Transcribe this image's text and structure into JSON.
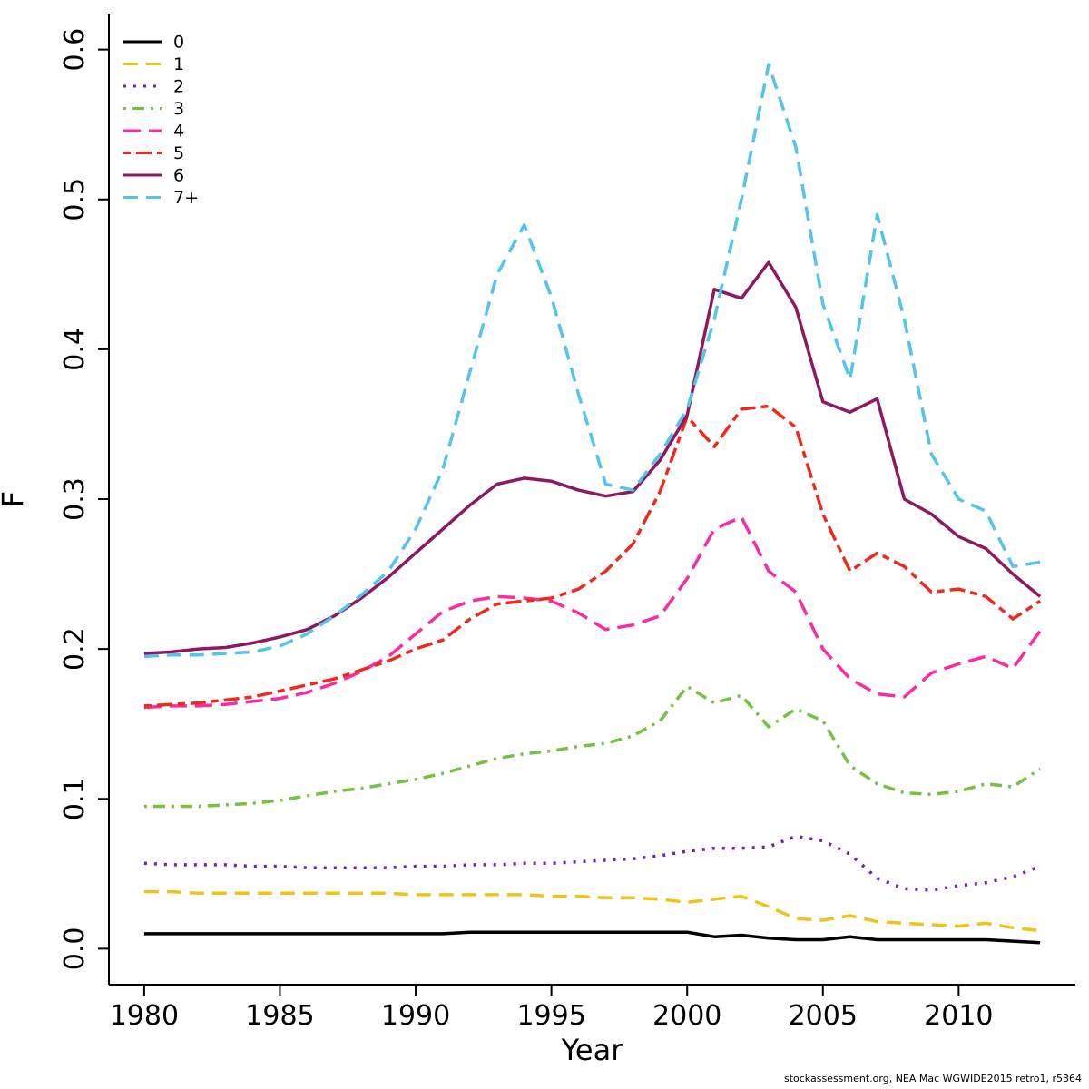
{
  "figure": {
    "footer": "stockassessment.org, NEA Mac WGWIDE2015 retro1, r5364"
  },
  "chart_data": {
    "type": "line",
    "title": "",
    "xlabel": "Year",
    "ylabel": "F",
    "grid": false,
    "legend_position": "top-left",
    "xlim": [
      1978.7,
      2014.3
    ],
    "ylim": [
      0.0,
      0.6
    ],
    "xticks": [
      1980,
      1985,
      1990,
      1995,
      2000,
      2005,
      2010
    ],
    "yticks": [
      0.0,
      0.1,
      0.2,
      0.3,
      0.4,
      0.5,
      0.6
    ],
    "x": [
      1980,
      1981,
      1982,
      1983,
      1984,
      1985,
      1986,
      1987,
      1988,
      1989,
      1990,
      1991,
      1992,
      1993,
      1994,
      1995,
      1996,
      1997,
      1998,
      1999,
      2000,
      2001,
      2002,
      2003,
      2004,
      2005,
      2006,
      2007,
      2008,
      2009,
      2010,
      2011,
      2012,
      2013
    ],
    "series": [
      {
        "name": "0",
        "color": "#000000",
        "linestyle": "solid",
        "values": [
          0.01,
          0.01,
          0.01,
          0.01,
          0.01,
          0.01,
          0.01,
          0.01,
          0.01,
          0.01,
          0.01,
          0.01,
          0.011,
          0.011,
          0.011,
          0.011,
          0.011,
          0.011,
          0.011,
          0.011,
          0.011,
          0.008,
          0.009,
          0.007,
          0.006,
          0.006,
          0.008,
          0.006,
          0.006,
          0.006,
          0.006,
          0.006,
          0.005,
          0.004
        ]
      },
      {
        "name": "1",
        "color": "#EEC31E",
        "linestyle": "dashed",
        "values": [
          0.038,
          0.038,
          0.037,
          0.037,
          0.037,
          0.037,
          0.037,
          0.037,
          0.037,
          0.037,
          0.036,
          0.036,
          0.036,
          0.036,
          0.036,
          0.035,
          0.035,
          0.034,
          0.034,
          0.033,
          0.031,
          0.033,
          0.035,
          0.028,
          0.02,
          0.019,
          0.022,
          0.018,
          0.017,
          0.016,
          0.015,
          0.017,
          0.014,
          0.012
        ]
      },
      {
        "name": "2",
        "color": "#6B24B2",
        "linestyle": "dotted",
        "values": [
          0.057,
          0.056,
          0.056,
          0.056,
          0.055,
          0.055,
          0.054,
          0.054,
          0.054,
          0.054,
          0.055,
          0.055,
          0.056,
          0.056,
          0.057,
          0.057,
          0.058,
          0.059,
          0.06,
          0.062,
          0.065,
          0.067,
          0.067,
          0.068,
          0.075,
          0.072,
          0.063,
          0.047,
          0.04,
          0.039,
          0.042,
          0.044,
          0.048,
          0.055
        ]
      },
      {
        "name": "3",
        "color": "#76C043",
        "linestyle": "dotdash",
        "values": [
          0.095,
          0.095,
          0.095,
          0.096,
          0.097,
          0.099,
          0.102,
          0.105,
          0.107,
          0.11,
          0.113,
          0.117,
          0.122,
          0.127,
          0.13,
          0.132,
          0.135,
          0.137,
          0.142,
          0.152,
          0.175,
          0.164,
          0.169,
          0.148,
          0.16,
          0.152,
          0.122,
          0.11,
          0.104,
          0.103,
          0.105,
          0.11,
          0.108,
          0.12
        ]
      },
      {
        "name": "4",
        "color": "#FB2BA0",
        "linestyle": "longdash",
        "values": [
          0.161,
          0.162,
          0.162,
          0.163,
          0.165,
          0.167,
          0.171,
          0.177,
          0.185,
          0.195,
          0.21,
          0.225,
          0.232,
          0.235,
          0.234,
          0.232,
          0.224,
          0.213,
          0.216,
          0.222,
          0.247,
          0.28,
          0.288,
          0.252,
          0.238,
          0.2,
          0.18,
          0.17,
          0.168,
          0.184,
          0.19,
          0.195,
          0.187,
          0.212
        ]
      },
      {
        "name": "5",
        "color": "#EE2A1F",
        "linestyle": "twodash",
        "values": [
          0.162,
          0.163,
          0.164,
          0.166,
          0.168,
          0.172,
          0.176,
          0.18,
          0.186,
          0.192,
          0.2,
          0.206,
          0.22,
          0.23,
          0.232,
          0.234,
          0.24,
          0.252,
          0.27,
          0.305,
          0.355,
          0.335,
          0.36,
          0.362,
          0.348,
          0.29,
          0.252,
          0.264,
          0.255,
          0.238,
          0.24,
          0.235,
          0.22,
          0.232
        ]
      },
      {
        "name": "6",
        "color": "#8B1A5E",
        "linestyle": "solid",
        "values": [
          0.197,
          0.198,
          0.2,
          0.201,
          0.204,
          0.208,
          0.213,
          0.222,
          0.234,
          0.248,
          0.264,
          0.28,
          0.296,
          0.31,
          0.314,
          0.312,
          0.306,
          0.302,
          0.305,
          0.326,
          0.356,
          0.44,
          0.434,
          0.458,
          0.428,
          0.365,
          0.358,
          0.367,
          0.3,
          0.29,
          0.275,
          0.267,
          0.25,
          0.235
        ]
      },
      {
        "name": "7+",
        "color": "#55C3EA",
        "linestyle": "dashed",
        "values": [
          0.195,
          0.196,
          0.196,
          0.197,
          0.198,
          0.202,
          0.21,
          0.222,
          0.236,
          0.252,
          0.28,
          0.32,
          0.385,
          0.45,
          0.483,
          0.435,
          0.37,
          0.31,
          0.306,
          0.33,
          0.36,
          0.42,
          0.5,
          0.59,
          0.535,
          0.43,
          0.38,
          0.49,
          0.42,
          0.33,
          0.3,
          0.292,
          0.255,
          0.258
        ]
      }
    ]
  }
}
